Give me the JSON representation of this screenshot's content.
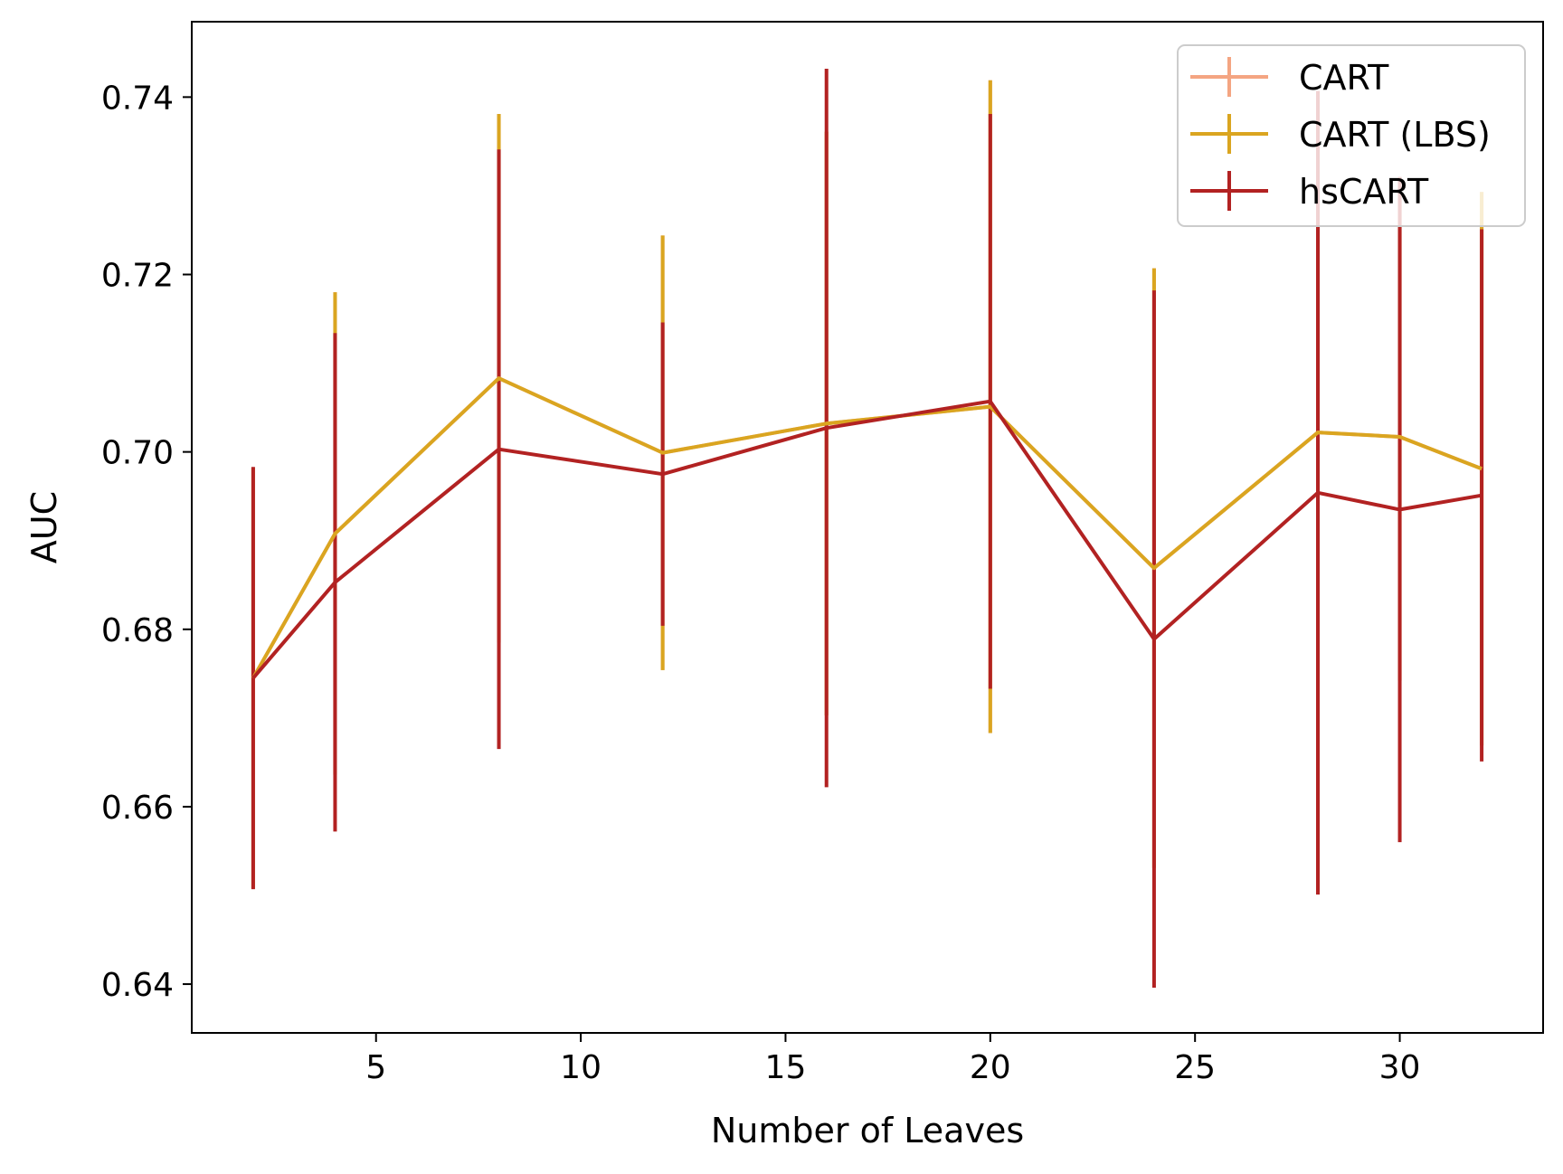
{
  "chart_data": {
    "type": "line",
    "xlabel": "Number of Leaves",
    "ylabel": "AUC",
    "xlim": [
      0.5,
      33.5
    ],
    "ylim": [
      0.6345,
      0.7485
    ],
    "xticks": [
      5,
      10,
      15,
      20,
      25,
      30
    ],
    "xtick_labels": [
      "5",
      "10",
      "15",
      "20",
      "25",
      "30"
    ],
    "yticks": [
      0.64,
      0.66,
      0.68,
      0.7,
      0.72,
      0.74
    ],
    "ytick_labels": [
      "0.64",
      "0.66",
      "0.68",
      "0.70",
      "0.72",
      "0.74"
    ],
    "grid": false,
    "legend_position": "top-right",
    "series": [
      {
        "name": "CART",
        "color": "#f4a582",
        "x": [
          2,
          4,
          8,
          12,
          16,
          20,
          24,
          28,
          30,
          32
        ],
        "y": [
          0.6745,
          0.6908,
          0.7083,
          0.6999,
          0.7032,
          0.7051,
          0.6869,
          0.7022,
          0.7017,
          0.6981
        ],
        "err": [
          0.0237,
          0.0272,
          0.0298,
          0.0245,
          0.0329,
          0.0368,
          0.0338,
          0.0323,
          0.0275,
          0.0312
        ]
      },
      {
        "name": "CART (LBS)",
        "color": "#daa520",
        "x": [
          2,
          4,
          8,
          12,
          16,
          20,
          24,
          28,
          30,
          32
        ],
        "y": [
          0.6745,
          0.6908,
          0.7083,
          0.6999,
          0.7032,
          0.7051,
          0.6869,
          0.7022,
          0.7017,
          0.6981
        ],
        "err": [
          0.0237,
          0.0272,
          0.0298,
          0.0245,
          0.0329,
          0.0368,
          0.0338,
          0.0323,
          0.0275,
          0.0312
        ]
      },
      {
        "name": "hsCART",
        "color": "#b22222",
        "x": [
          2,
          4,
          8,
          12,
          16,
          20,
          24,
          28,
          30,
          32
        ],
        "y": [
          0.6745,
          0.6853,
          0.7003,
          0.6975,
          0.7027,
          0.7057,
          0.6789,
          0.6954,
          0.6935,
          0.6951
        ],
        "err": [
          0.0238,
          0.0281,
          0.0338,
          0.0171,
          0.0405,
          0.0324,
          0.0393,
          0.0453,
          0.0375,
          0.03
        ]
      }
    ]
  }
}
